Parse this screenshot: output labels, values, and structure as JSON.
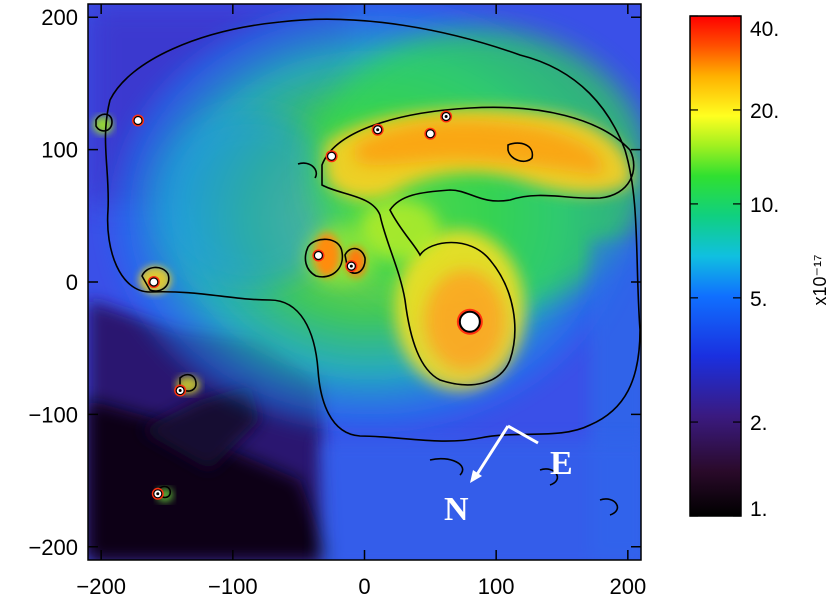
{
  "chart_data": {
    "type": "heatmap",
    "title": "",
    "xlabel": "",
    "ylabel": "",
    "x_ticks": [
      -200,
      -100,
      0,
      100,
      200
    ],
    "y_ticks": [
      200,
      100,
      0,
      -100,
      -200
    ],
    "xlim": [
      -210,
      210
    ],
    "ylim": [
      -210,
      210
    ],
    "x_tick_labels": [
      "−200",
      "−100",
      "0",
      "100",
      "200"
    ],
    "y_tick_labels": [
      "200",
      "100",
      "0",
      "−100",
      "−200"
    ],
    "colorbar": {
      "scale": "log",
      "range": [
        1,
        40
      ],
      "ticks": [
        40,
        20,
        10,
        5,
        2,
        1
      ],
      "tick_labels": [
        "40.",
        "20.",
        "10.",
        "5.",
        "2.",
        "1."
      ],
      "unit_label": "x10⁻¹⁷"
    },
    "annotations": {
      "north_label": "N",
      "east_label": "E"
    },
    "point_sources": [
      {
        "x": 80,
        "y": -30
      },
      {
        "x": -25,
        "y": 95
      },
      {
        "x": 10,
        "y": 115
      },
      {
        "x": 50,
        "y": 112
      },
      {
        "x": 62,
        "y": 125
      },
      {
        "x": -160,
        "y": 0
      },
      {
        "x": -140,
        "y": -82
      },
      {
        "x": -172,
        "y": 122
      },
      {
        "x": -157,
        "y": -160
      },
      {
        "x": -35,
        "y": 20
      },
      {
        "x": -10,
        "y": 12
      }
    ],
    "grid": false,
    "contours": true
  }
}
